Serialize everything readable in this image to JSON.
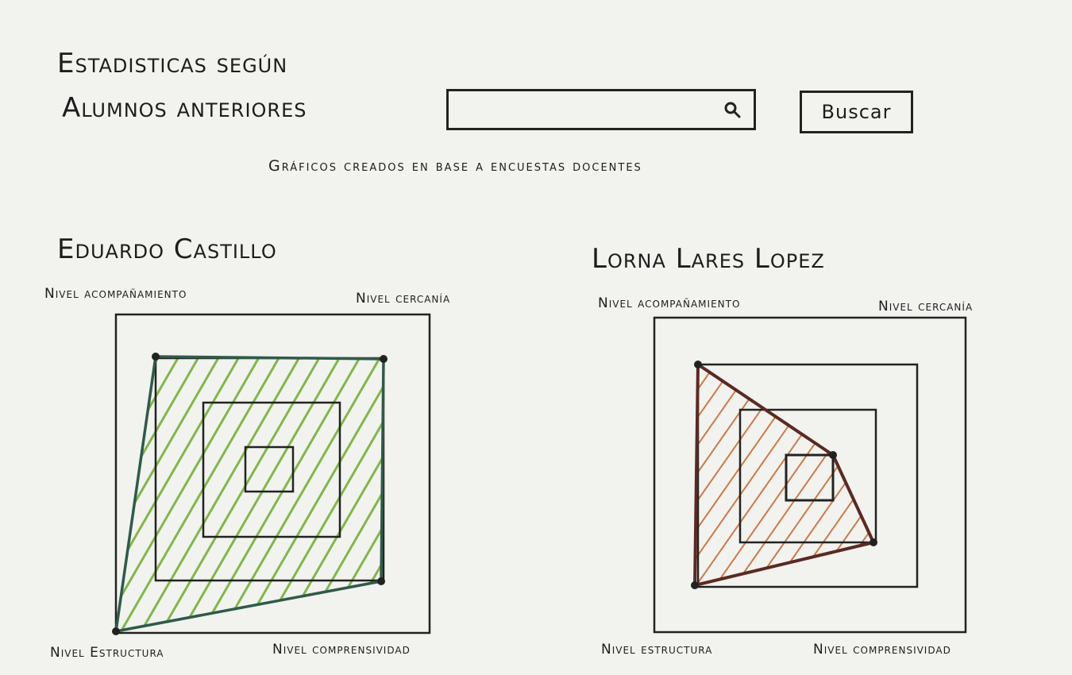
{
  "header": {
    "title_line1": "Estadisticas según",
    "title_line2": "Alumnos anteriores",
    "subtitle": "Gráficos creados en base a encuestas docentes"
  },
  "search": {
    "placeholder": "",
    "value": "",
    "icon": "search-icon",
    "button_label": "Buscar"
  },
  "charts": [
    {
      "name": "Eduardo Castillo",
      "labels": {
        "top_left": "Nivel acompañamiento",
        "top_right": "Nivel cercanía",
        "bottom_left": "Nivel Estructura",
        "bottom_right": "Nivel comprensividad"
      },
      "fill_color": "#7cb342",
      "stroke_color": "#2f5a4a"
    },
    {
      "name": "Lorna Lares Lopez",
      "labels": {
        "top_left": "Nivel acompañamiento",
        "top_right": "Nivel cercanía",
        "bottom_left": "Nivel estructura",
        "bottom_right": "Nivel comprensividad"
      },
      "fill_color": "#c8743f",
      "stroke_color": "#5a2a22"
    }
  ]
}
